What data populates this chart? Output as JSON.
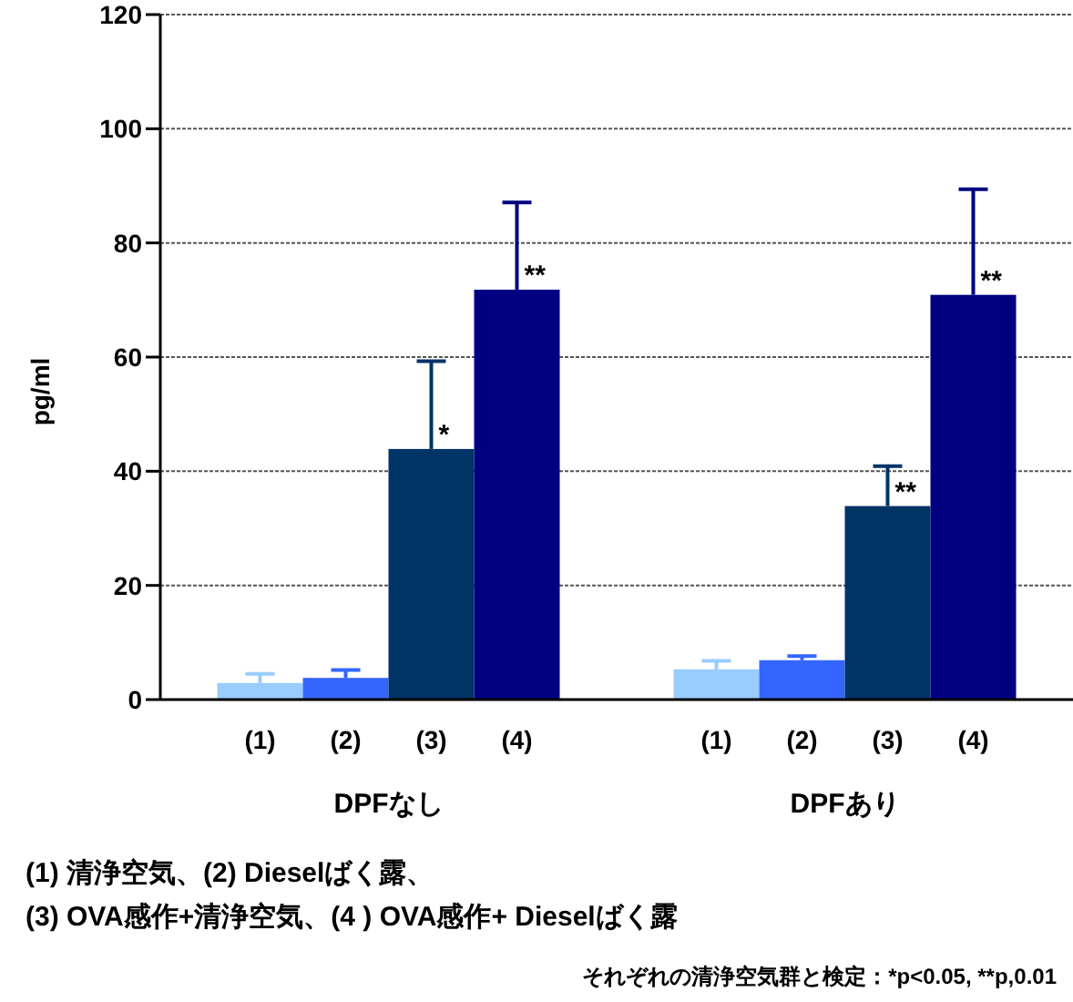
{
  "chart_data": {
    "type": "bar",
    "ylabel": "pg/ml",
    "categories": [
      "DPFなし",
      "DPFあり"
    ],
    "series": [
      {
        "name": "(1)",
        "color": "#99ccff",
        "values": [
          2.9,
          5.3
        ],
        "errors": [
          [
            2.9,
            4.5
          ],
          [
            5.3,
            6.8
          ]
        ]
      },
      {
        "name": "(2)",
        "color": "#3366ff",
        "values": [
          3.8,
          6.9
        ],
        "errors": [
          [
            3.8,
            5.2
          ],
          [
            6.9,
            7.6
          ]
        ]
      },
      {
        "name": "(3)",
        "color": "#003366",
        "values": [
          43.9,
          33.9
        ],
        "errors": [
          [
            43.9,
            59.3
          ],
          [
            33.9,
            40.9
          ]
        ],
        "value_labels": [
          "*",
          "**"
        ]
      },
      {
        "name": "(4)",
        "color": "#000080",
        "values": [
          71.8,
          70.9
        ],
        "errors": [
          [
            71.8,
            87.1
          ],
          [
            70.9,
            89.4
          ]
        ],
        "value_labels": [
          "**",
          "**"
        ]
      }
    ],
    "ylim": [
      0,
      120
    ],
    "yticks": [
      0,
      20,
      40,
      60,
      80,
      100,
      120
    ],
    "grid": "y",
    "annotations": [
      "(1) 清浄空気、(2) Dieselばく露、",
      "(3) OVA感作+清浄空気、(4 ) OVA感作+ Dieselばく露",
      "それぞれの清浄空気群と検定：*p<0.05, **p,0.01"
    ]
  }
}
